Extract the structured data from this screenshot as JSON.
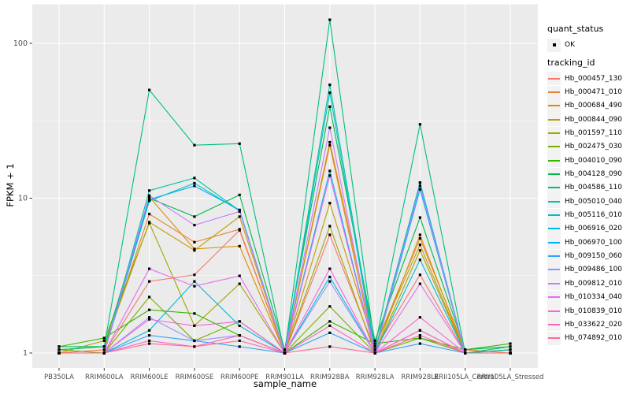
{
  "figure": {
    "y_axis_title": "FPKM + 1",
    "x_axis_title": "sample_name"
  },
  "legend": {
    "quant_status_title": "quant_status",
    "quant_status_ok_label": "OK",
    "tracking_id_title": "tracking_id"
  },
  "colors": {
    "panel_bg": "#EBEBEB",
    "grid": "#FFFFFF",
    "axis_text": "#4D4D4D",
    "tick_mark": "#333333",
    "marker": "#000000",
    "legend_key_bg": "#F2F2F2"
  },
  "chart_data": {
    "type": "line",
    "title": "",
    "xlabel": "sample_name",
    "ylabel": "FPKM + 1",
    "y_scale": "log10",
    "ylim": [
      0.8,
      178
    ],
    "y_major_ticks": [
      1,
      10,
      100
    ],
    "y_tick_labels": [
      "1",
      "10",
      "100"
    ],
    "y_minor_ticks": [
      3.1623,
      31.623
    ],
    "grid": true,
    "legend_position": "right",
    "point_marker": "black-square",
    "quant_status": "OK",
    "categories": [
      "PB350LA",
      "RRIM600LA",
      "RRIM600LE",
      "RRIM600SE",
      "RRIM600PE",
      "RRIM901LA",
      "RRIM928BA",
      "RRIM928LA",
      "RRIM928LE",
      "RRII105LA_Control",
      "RRII105LA_Stressed"
    ],
    "series": [
      {
        "name": "Hb_000457_130",
        "color": "#F8766D",
        "values": [
          1.0,
          1.0,
          2.9,
          3.2,
          6.2,
          1.0,
          5.8,
          1.05,
          3.2,
          1.0,
          1.05
        ]
      },
      {
        "name": "Hb_000471_010",
        "color": "#EA8331",
        "values": [
          1.0,
          1.05,
          7.9,
          5.2,
          6.3,
          1.0,
          23,
          1.1,
          5.5,
          1.05,
          1.0
        ]
      },
      {
        "name": "Hb_000684_490",
        "color": "#D89000",
        "values": [
          1.0,
          1.0,
          10.2,
          4.7,
          4.9,
          1.0,
          22,
          1.0,
          5.8,
          1.0,
          1.0
        ]
      },
      {
        "name": "Hb_000844_090",
        "color": "#C09B00",
        "values": [
          1.05,
          1.1,
          7.0,
          4.6,
          7.6,
          1.0,
          9.3,
          1.1,
          5.0,
          1.0,
          1.05
        ]
      },
      {
        "name": "Hb_001597_110",
        "color": "#A3A500",
        "values": [
          1.0,
          1.2,
          6.9,
          1.5,
          2.8,
          1.0,
          6.6,
          1.0,
          4.6,
          1.0,
          1.0
        ]
      },
      {
        "name": "Hb_002475_030",
        "color": "#7CAE00",
        "values": [
          1.05,
          1.0,
          2.3,
          1.2,
          1.6,
          1.0,
          2.0,
          1.0,
          1.25,
          1.0,
          1.0
        ]
      },
      {
        "name": "Hb_004010_090",
        "color": "#39B600",
        "values": [
          1.1,
          1.25,
          1.9,
          1.8,
          1.3,
          1.0,
          1.6,
          1.15,
          1.25,
          1.05,
          1.15
        ]
      },
      {
        "name": "Hb_004128_090",
        "color": "#00BB4E",
        "values": [
          1.1,
          1.1,
          10.0,
          7.6,
          10.5,
          1.05,
          39,
          1.2,
          7.5,
          1.05,
          1.1
        ]
      },
      {
        "name": "Hb_004586_110",
        "color": "#00BF7D",
        "values": [
          1.05,
          1.1,
          50,
          22,
          22.5,
          1.0,
          142,
          1.1,
          30,
          1.0,
          1.1
        ]
      },
      {
        "name": "Hb_005010_040",
        "color": "#00C1A3",
        "values": [
          1.0,
          1.0,
          11.2,
          13.5,
          8.3,
          1.0,
          54,
          1.05,
          12.6,
          1.0,
          1.05
        ]
      },
      {
        "name": "Hb_005116_010",
        "color": "#00BFC4",
        "values": [
          1.0,
          1.0,
          9.6,
          12.5,
          8.3,
          1.0,
          48,
          1.0,
          12.6,
          1.0,
          1.0
        ]
      },
      {
        "name": "Hb_006916_020",
        "color": "#00BAE0",
        "values": [
          1.0,
          1.0,
          1.4,
          2.9,
          1.5,
          1.0,
          3.1,
          1.0,
          4.0,
          1.0,
          1.0
        ]
      },
      {
        "name": "Hb_006970_100",
        "color": "#00B0F6",
        "values": [
          1.0,
          1.0,
          9.8,
          12.0,
          8.4,
          1.0,
          15,
          1.0,
          11.4,
          1.0,
          1.0
        ]
      },
      {
        "name": "Hb_009150_060",
        "color": "#35A2FF",
        "values": [
          1.0,
          1.0,
          1.3,
          1.2,
          1.1,
          1.0,
          1.35,
          1.0,
          1.15,
          1.0,
          1.0
        ]
      },
      {
        "name": "Hb_009486_100",
        "color": "#9590FF",
        "values": [
          1.0,
          1.0,
          1.7,
          1.2,
          1.3,
          1.0,
          2.9,
          1.0,
          1.4,
          1.0,
          1.0
        ]
      },
      {
        "name": "Hb_009812_010",
        "color": "#C77CFF",
        "values": [
          1.0,
          1.0,
          10.4,
          6.7,
          8.2,
          1.0,
          28.5,
          1.0,
          12.0,
          1.0,
          1.0
        ]
      },
      {
        "name": "Hb_010334_040",
        "color": "#E76BF3",
        "values": [
          1.0,
          1.0,
          3.5,
          2.7,
          3.15,
          1.0,
          14,
          1.0,
          2.8,
          1.0,
          1.0
        ]
      },
      {
        "name": "Hb_010839_010",
        "color": "#FA62DB",
        "values": [
          1.0,
          1.0,
          1.65,
          1.5,
          1.6,
          1.0,
          3.5,
          1.0,
          1.7,
          1.0,
          1.0
        ]
      },
      {
        "name": "Hb_033622_020",
        "color": "#FF62BC",
        "values": [
          1.0,
          1.0,
          1.2,
          1.1,
          1.3,
          1.0,
          1.5,
          1.0,
          1.4,
          1.0,
          1.0
        ]
      },
      {
        "name": "Hb_074892_010",
        "color": "#FF6A98",
        "values": [
          1.0,
          1.0,
          1.15,
          1.1,
          1.2,
          1.0,
          1.1,
          1.0,
          1.3,
          1.0,
          1.0
        ]
      }
    ]
  }
}
